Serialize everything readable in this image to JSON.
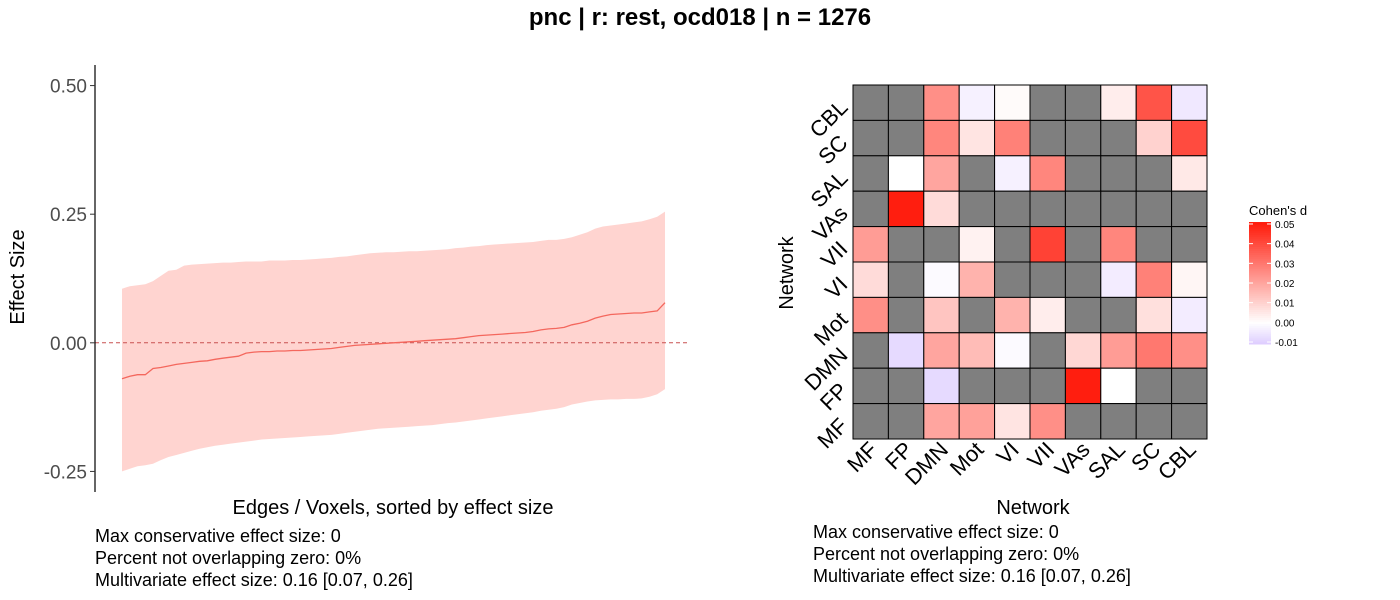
{
  "title": "pnc | r: rest, ocd018 | n = 1276",
  "chart_data": [
    {
      "type": "area",
      "xlabel": "Edges / Voxels, sorted by effect size",
      "ylabel": "Effect Size",
      "ylim": [
        -0.29,
        0.54
      ],
      "yticks": [
        0.5,
        0.25,
        0.0,
        -0.25
      ],
      "ytick_labels": [
        "0.50",
        "0.25",
        "0.00",
        "-0.25"
      ],
      "reference_line": 0.0,
      "colors": {
        "ribbon": "#ffd4d0",
        "line": "#f4675d",
        "zero_line": "#c85050"
      },
      "series": [
        {
          "values": [
            -0.07,
            -0.065,
            -0.062,
            -0.062,
            -0.05,
            -0.048,
            -0.045,
            -0.042,
            -0.04,
            -0.038,
            -0.036,
            -0.035,
            -0.032,
            -0.03,
            -0.028,
            -0.026,
            -0.02,
            -0.018,
            -0.017,
            -0.017,
            -0.016,
            -0.016,
            -0.015,
            -0.015,
            -0.014,
            -0.013,
            -0.012,
            -0.011,
            -0.009,
            -0.007,
            -0.005,
            -0.004,
            -0.003,
            -0.002,
            -0.001,
            0.0,
            0.001,
            0.002,
            0.003,
            0.004,
            0.005,
            0.006,
            0.007,
            0.008,
            0.01,
            0.012,
            0.014,
            0.015,
            0.016,
            0.017,
            0.018,
            0.019,
            0.02,
            0.022,
            0.025,
            0.027,
            0.028,
            0.03,
            0.035,
            0.038,
            0.042,
            0.048,
            0.052,
            0.055,
            0.056,
            0.057,
            0.058,
            0.058,
            0.06,
            0.062,
            0.078
          ]
        },
        {
          "values": [
            0.105,
            0.11,
            0.112,
            0.114,
            0.12,
            0.13,
            0.14,
            0.142,
            0.15,
            0.152,
            0.153,
            0.154,
            0.155,
            0.156,
            0.156,
            0.157,
            0.158,
            0.158,
            0.158,
            0.16,
            0.16,
            0.16,
            0.161,
            0.161,
            0.162,
            0.163,
            0.164,
            0.165,
            0.167,
            0.168,
            0.17,
            0.172,
            0.174,
            0.175,
            0.176,
            0.176,
            0.177,
            0.178,
            0.178,
            0.179,
            0.18,
            0.181,
            0.182,
            0.184,
            0.185,
            0.187,
            0.188,
            0.19,
            0.191,
            0.192,
            0.193,
            0.194,
            0.195,
            0.196,
            0.198,
            0.2,
            0.2,
            0.202,
            0.205,
            0.21,
            0.215,
            0.222,
            0.226,
            0.228,
            0.23,
            0.232,
            0.234,
            0.236,
            0.24,
            0.245,
            0.255
          ]
        },
        {
          "values": [
            -0.25,
            -0.245,
            -0.24,
            -0.238,
            -0.235,
            -0.228,
            -0.222,
            -0.218,
            -0.214,
            -0.21,
            -0.206,
            -0.203,
            -0.2,
            -0.198,
            -0.196,
            -0.194,
            -0.192,
            -0.19,
            -0.188,
            -0.187,
            -0.186,
            -0.185,
            -0.184,
            -0.183,
            -0.182,
            -0.181,
            -0.18,
            -0.179,
            -0.177,
            -0.175,
            -0.173,
            -0.171,
            -0.169,
            -0.167,
            -0.166,
            -0.165,
            -0.164,
            -0.163,
            -0.162,
            -0.161,
            -0.16,
            -0.158,
            -0.156,
            -0.155,
            -0.153,
            -0.151,
            -0.149,
            -0.147,
            -0.145,
            -0.143,
            -0.141,
            -0.139,
            -0.137,
            -0.135,
            -0.132,
            -0.13,
            -0.128,
            -0.125,
            -0.12,
            -0.117,
            -0.114,
            -0.112,
            -0.111,
            -0.11,
            -0.11,
            -0.109,
            -0.109,
            -0.108,
            -0.105,
            -0.1,
            -0.09
          ]
        }
      ],
      "stats": [
        "Max conservative effect size: 0",
        "Percent not overlapping zero: 0%",
        "Multivariate effect size: 0.16 [0.07, 0.26]"
      ]
    },
    {
      "type": "heatmap",
      "xlabel": "Network",
      "ylabel": "Network",
      "categories": [
        "MF",
        "FP",
        "DMN",
        "Mot",
        "VI",
        "VII",
        "VAs",
        "SAL",
        "SC",
        "CBL"
      ],
      "matrix_rows_top_to_bottom": [
        "CBL",
        "SC",
        "SAL",
        "VAs",
        "VII",
        "VI",
        "Mot",
        "DMN",
        "FP",
        "MF"
      ],
      "matrix": [
        [
          null,
          null,
          0.025,
          -0.003,
          0.001,
          null,
          null,
          0.004,
          0.038,
          -0.005
        ],
        [
          null,
          null,
          0.027,
          0.006,
          0.028,
          null,
          null,
          null,
          0.01,
          0.04
        ],
        [
          null,
          0.0,
          0.02,
          null,
          -0.003,
          0.027,
          null,
          null,
          null,
          0.005
        ],
        [
          null,
          0.05,
          0.008,
          null,
          null,
          null,
          null,
          null,
          null,
          null
        ],
        [
          0.022,
          null,
          null,
          0.003,
          null,
          0.042,
          null,
          0.027,
          null,
          null
        ],
        [
          0.008,
          null,
          -0.001,
          0.017,
          null,
          null,
          null,
          -0.004,
          0.028,
          0.002
        ],
        [
          0.025,
          null,
          0.013,
          null,
          0.017,
          0.004,
          null,
          null,
          0.007,
          -0.004
        ],
        [
          null,
          -0.008,
          0.02,
          0.015,
          -0.001,
          null,
          0.009,
          0.022,
          0.03,
          0.025
        ],
        [
          null,
          null,
          -0.008,
          null,
          null,
          null,
          0.05,
          0.0,
          null,
          null
        ],
        [
          null,
          null,
          0.02,
          0.021,
          0.006,
          0.025,
          null,
          null,
          null,
          null
        ]
      ],
      "missing_color": "#7f7f7f",
      "legend": {
        "title": "Cohen's d",
        "range": [
          -0.011,
          0.051
        ],
        "ticks": [
          0.05,
          0.04,
          0.03,
          0.02,
          0.01,
          0.0,
          -0.01
        ],
        "tick_labels": [
          "0.05",
          "0.04",
          "0.03",
          "0.02",
          "0.01",
          "0.00",
          "-0.01"
        ],
        "colors": {
          "high": "#ff1a0a",
          "mid": "#ffffff",
          "low": "#ddccff"
        }
      },
      "stats": [
        "Max conservative effect size: 0",
        "Percent not overlapping zero: 0%",
        "Multivariate effect size: 0.16 [0.07, 0.26]"
      ]
    }
  ]
}
